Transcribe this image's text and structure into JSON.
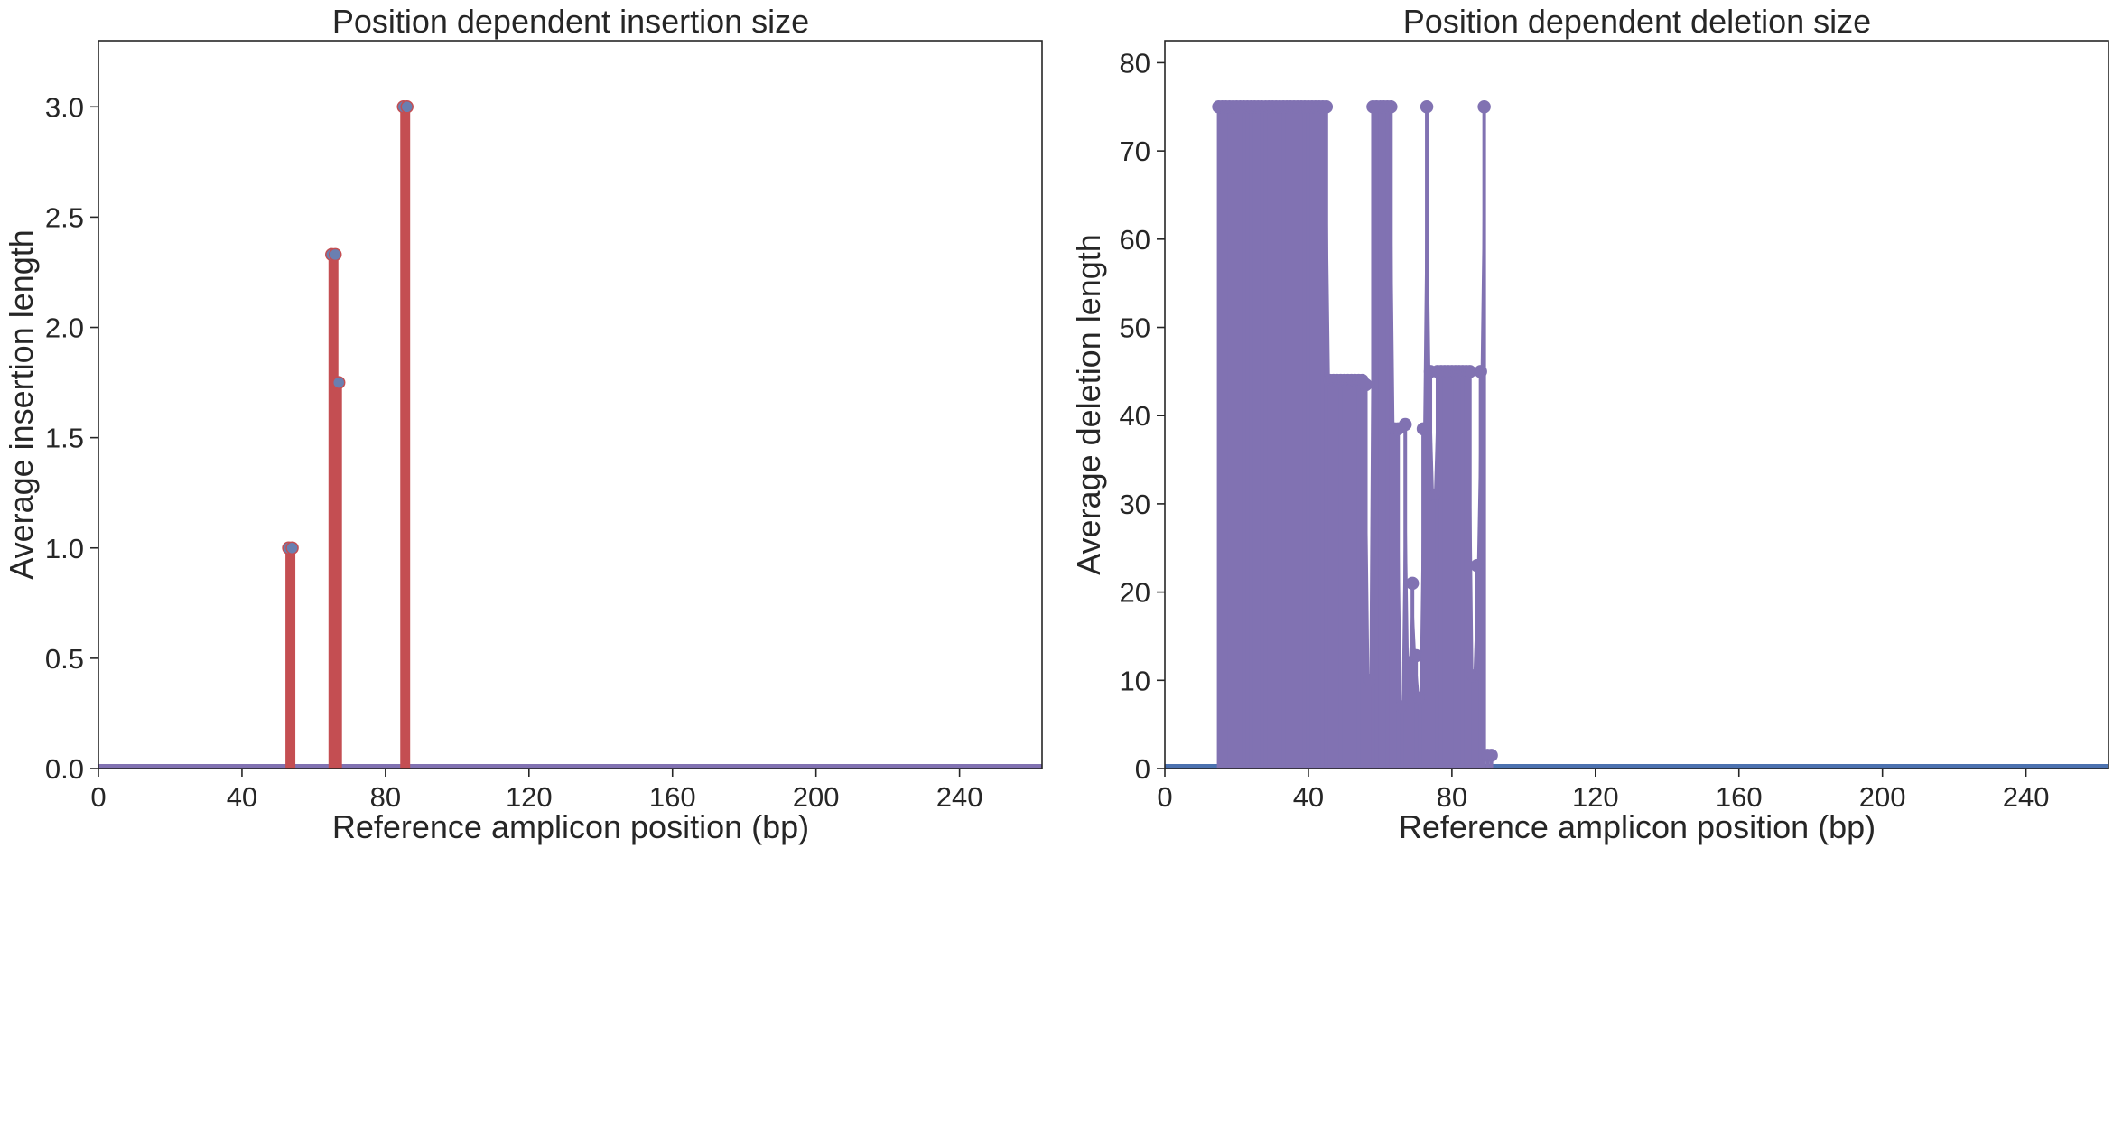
{
  "chart_data": [
    {
      "type": "stem",
      "title": "Position dependent insertion size",
      "xlabel": "Reference amplicon position (bp)",
      "ylabel": "Average insertion length",
      "xlim": [
        0,
        263
      ],
      "ylim": [
        0,
        3.3
      ],
      "xticks": [
        0,
        40,
        80,
        120,
        160,
        200,
        240
      ],
      "yticks": [
        0.0,
        0.5,
        1.0,
        1.5,
        2.0,
        2.5,
        3.0
      ],
      "ytick_format": "fixed1",
      "grid": false,
      "color": "#c44e52",
      "marker_color": "#6a7fb0",
      "baseline_color": "#8172b2",
      "points": [
        {
          "x": 53,
          "y": 1.0
        },
        {
          "x": 54,
          "y": 1.0
        },
        {
          "x": 65,
          "y": 2.33
        },
        {
          "x": 66,
          "y": 2.33
        },
        {
          "x": 67,
          "y": 1.75
        },
        {
          "x": 85,
          "y": 3.0
        },
        {
          "x": 86,
          "y": 3.0
        }
      ]
    },
    {
      "type": "stem",
      "title": "Position dependent deletion size",
      "xlabel": "Reference amplicon position (bp)",
      "ylabel": "Average deletion length",
      "xlim": [
        0,
        263
      ],
      "ylim": [
        0,
        82.5
      ],
      "xticks": [
        0,
        40,
        80,
        120,
        160,
        200,
        240
      ],
      "yticks": [
        0,
        10,
        20,
        30,
        40,
        50,
        60,
        70,
        80
      ],
      "ytick_format": "int",
      "grid": false,
      "color": "#8172b2",
      "marker_color": "#8172b2",
      "baseline_color": "#4c72b0",
      "points": [
        {
          "x": 15,
          "y": 75
        },
        {
          "x": 16,
          "y": 75
        },
        {
          "x": 17,
          "y": 75
        },
        {
          "x": 18,
          "y": 75
        },
        {
          "x": 19,
          "y": 75
        },
        {
          "x": 20,
          "y": 75
        },
        {
          "x": 21,
          "y": 75
        },
        {
          "x": 22,
          "y": 75
        },
        {
          "x": 23,
          "y": 75
        },
        {
          "x": 24,
          "y": 75
        },
        {
          "x": 25,
          "y": 75
        },
        {
          "x": 26,
          "y": 75
        },
        {
          "x": 27,
          "y": 75
        },
        {
          "x": 28,
          "y": 75
        },
        {
          "x": 29,
          "y": 75
        },
        {
          "x": 30,
          "y": 75
        },
        {
          "x": 31,
          "y": 75
        },
        {
          "x": 32,
          "y": 75
        },
        {
          "x": 33,
          "y": 75
        },
        {
          "x": 34,
          "y": 75
        },
        {
          "x": 35,
          "y": 75
        },
        {
          "x": 36,
          "y": 75
        },
        {
          "x": 37,
          "y": 75
        },
        {
          "x": 38,
          "y": 75
        },
        {
          "x": 39,
          "y": 75
        },
        {
          "x": 40,
          "y": 75
        },
        {
          "x": 41,
          "y": 75
        },
        {
          "x": 42,
          "y": 75
        },
        {
          "x": 43,
          "y": 75
        },
        {
          "x": 44,
          "y": 75
        },
        {
          "x": 45,
          "y": 75
        },
        {
          "x": 46,
          "y": 44
        },
        {
          "x": 47,
          "y": 44
        },
        {
          "x": 48,
          "y": 44
        },
        {
          "x": 49,
          "y": 44
        },
        {
          "x": 50,
          "y": 44
        },
        {
          "x": 51,
          "y": 44
        },
        {
          "x": 52,
          "y": 44
        },
        {
          "x": 53,
          "y": 44
        },
        {
          "x": 54,
          "y": 44
        },
        {
          "x": 55,
          "y": 44
        },
        {
          "x": 56,
          "y": 43.5
        },
        {
          "x": 57,
          "y": 10
        },
        {
          "x": 58,
          "y": 75
        },
        {
          "x": 59,
          "y": 75
        },
        {
          "x": 60,
          "y": 75
        },
        {
          "x": 61,
          "y": 75
        },
        {
          "x": 62,
          "y": 75
        },
        {
          "x": 63,
          "y": 75
        },
        {
          "x": 64,
          "y": 38.5
        },
        {
          "x": 65,
          "y": 38.5
        },
        {
          "x": 66,
          "y": 7
        },
        {
          "x": 67,
          "y": 39
        },
        {
          "x": 68,
          "y": 12
        },
        {
          "x": 69,
          "y": 21
        },
        {
          "x": 70,
          "y": 12.8
        },
        {
          "x": 71,
          "y": 8
        },
        {
          "x": 72,
          "y": 38.5
        },
        {
          "x": 73,
          "y": 75
        },
        {
          "x": 74,
          "y": 45
        },
        {
          "x": 75,
          "y": 31
        },
        {
          "x": 76,
          "y": 45
        },
        {
          "x": 77,
          "y": 45
        },
        {
          "x": 78,
          "y": 45
        },
        {
          "x": 79,
          "y": 45
        },
        {
          "x": 80,
          "y": 45
        },
        {
          "x": 81,
          "y": 45
        },
        {
          "x": 82,
          "y": 45
        },
        {
          "x": 83,
          "y": 45
        },
        {
          "x": 84,
          "y": 45
        },
        {
          "x": 85,
          "y": 45
        },
        {
          "x": 86,
          "y": 10.5
        },
        {
          "x": 87,
          "y": 23
        },
        {
          "x": 88,
          "y": 45
        },
        {
          "x": 89,
          "y": 75
        },
        {
          "x": 90,
          "y": 1.5
        },
        {
          "x": 91,
          "y": 1.5
        }
      ]
    }
  ]
}
